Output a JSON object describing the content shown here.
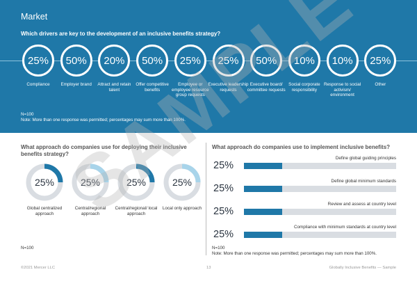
{
  "header": {
    "section": "Market",
    "question": "Which drivers are key to the development of an inclusive benefits strategy?"
  },
  "drivers": [
    {
      "pct": "25%",
      "label": "Compliance"
    },
    {
      "pct": "50%",
      "label": "Employer brand"
    },
    {
      "pct": "20%",
      "label": "Attract and retain talent"
    },
    {
      "pct": "50%",
      "label": "Offer competitive benefits"
    },
    {
      "pct": "25%",
      "label": "Employee or employee resource group requests"
    },
    {
      "pct": "25%",
      "label": "Executive leadership requests"
    },
    {
      "pct": "50%",
      "label": "Executive board/ committee requests"
    },
    {
      "pct": "10%",
      "label": "Social corporate responsibility"
    },
    {
      "pct": "10%",
      "label": "Response to social activism/ environment"
    },
    {
      "pct": "25%",
      "label": "Other"
    }
  ],
  "drivers_note": {
    "n": "N=100",
    "note": "Note: More than one response was permitted; percentages may sum more than 100%."
  },
  "deploy": {
    "question": "What approach do companies use for deploying their inclusive benefits strategy?",
    "n": "N=100",
    "items": [
      {
        "pct": "25%",
        "value": 25,
        "label": "Global centralized approach"
      },
      {
        "pct": "25%",
        "value": 25,
        "label": "Central/regional approach"
      },
      {
        "pct": "25%",
        "value": 25,
        "label": "Central/regional/ local approach"
      },
      {
        "pct": "25%",
        "value": 25,
        "label": "Local only approach"
      }
    ]
  },
  "implement": {
    "question": "What approach do companies use to implement inclusive benefits?",
    "n": "N=100",
    "note": "Note: More than one response was permitted; percentages may sum more than 100%.",
    "items": [
      {
        "pct": "25%",
        "value": 25,
        "label": "Define global guiding principles"
      },
      {
        "pct": "25%",
        "value": 25,
        "label": "Define global minimum standards"
      },
      {
        "pct": "25%",
        "value": 25,
        "label": "Review and assess at country level"
      },
      {
        "pct": "25%",
        "value": 25,
        "label": "Compliance with minimum standards at country level"
      }
    ]
  },
  "footer": {
    "copyright": "©2021 Mercer LLC",
    "page": "13",
    "title": "Globally Inclusive Benefits — Sample"
  },
  "watermark": "SAMPLE",
  "colors": {
    "brand": "#1f78a8",
    "light": "#a8d4ea",
    "track": "#d9dde2"
  }
}
